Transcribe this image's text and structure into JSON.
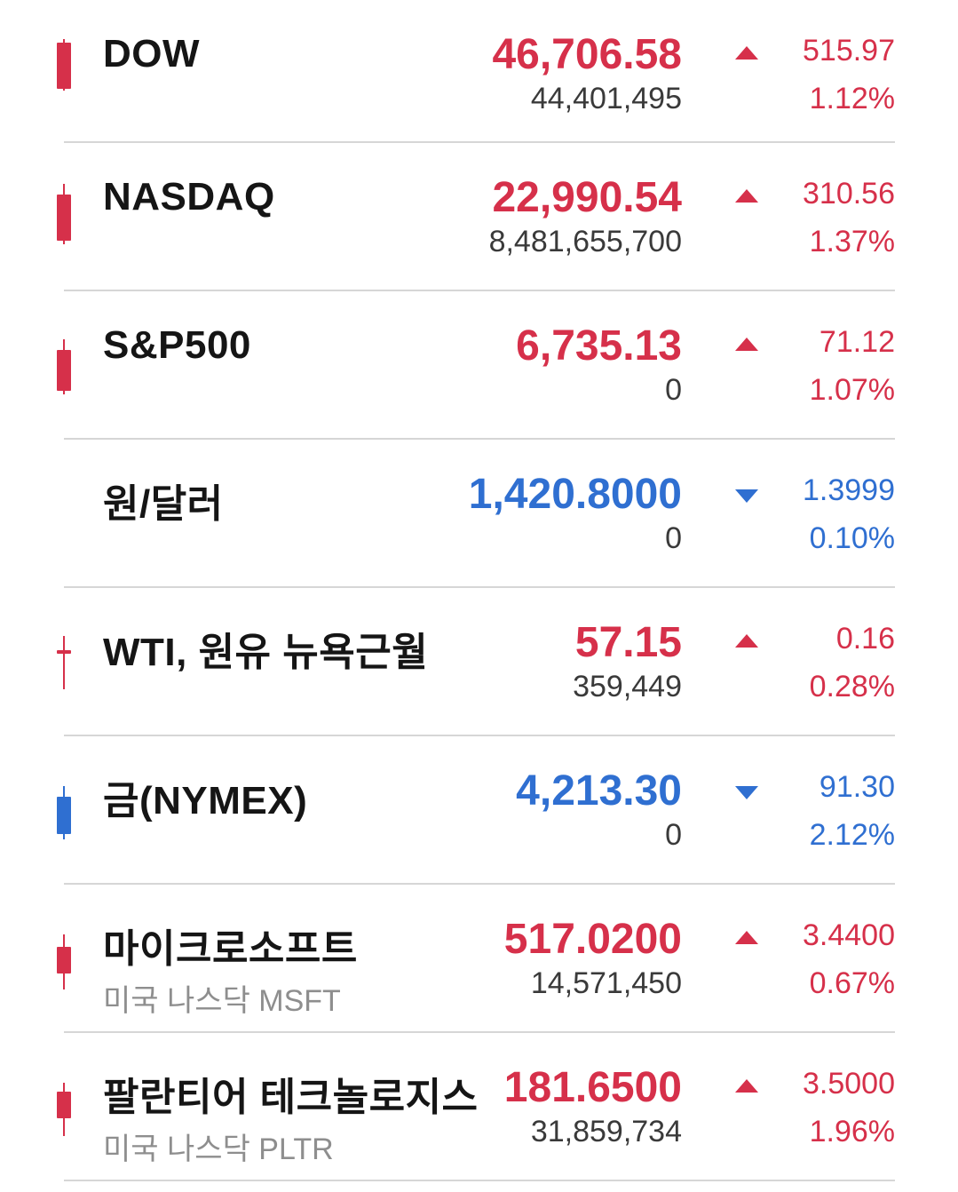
{
  "colors": {
    "up": "#d6304a",
    "down": "#2f6fd1"
  },
  "items": [
    {
      "name": "DOW",
      "sub": "",
      "price": "46,706.58",
      "volume": "44,401,495",
      "direction": "up",
      "arrow_icon": "triangle-up-icon",
      "change": "515.97",
      "pct": "1.12%",
      "candle": {
        "show": true,
        "wick_top": 50,
        "wick_bottom": 108,
        "body_top": 54,
        "body_bottom": 106
      }
    },
    {
      "name": "NASDAQ",
      "sub": "",
      "price": "22,990.54",
      "volume": "8,481,655,700",
      "direction": "up",
      "arrow_icon": "triangle-up-icon",
      "change": "310.56",
      "pct": "1.37%",
      "candle": {
        "show": true,
        "wick_top": 46,
        "wick_bottom": 114,
        "body_top": 58,
        "body_bottom": 110
      }
    },
    {
      "name": "S&P500",
      "sub": "",
      "price": "6,735.13",
      "volume": "0",
      "direction": "up",
      "arrow_icon": "triangle-up-icon",
      "change": "71.12",
      "pct": "1.07%",
      "candle": {
        "show": true,
        "wick_top": 54,
        "wick_bottom": 116,
        "body_top": 66,
        "body_bottom": 112
      }
    },
    {
      "name": "원/달러",
      "sub": "",
      "price": "1,420.8000",
      "volume": "0",
      "direction": "down",
      "arrow_icon": "triangle-down-icon",
      "change": "1.3999",
      "pct": "0.10%",
      "candle": {
        "show": false
      }
    },
    {
      "name": "WTI, 원유 뉴욕근월",
      "sub": "",
      "price": "57.15",
      "volume": "359,449",
      "direction": "up",
      "arrow_icon": "triangle-up-icon",
      "change": "0.16",
      "pct": "0.28%",
      "candle": {
        "show": true,
        "wick_top": 54,
        "wick_bottom": 114,
        "body_top": 70,
        "body_bottom": 74
      }
    },
    {
      "name": "금(NYMEX)",
      "sub": "",
      "price": "4,213.30",
      "volume": "0",
      "direction": "down",
      "arrow_icon": "triangle-down-icon",
      "change": "91.30",
      "pct": "2.12%",
      "candle": {
        "show": true,
        "wick_top": 56,
        "wick_bottom": 116,
        "body_top": 68,
        "body_bottom": 110
      }
    },
    {
      "name": "마이크로소프트",
      "sub": "미국 나스닥 MSFT",
      "price": "517.0200",
      "volume": "14,571,450",
      "direction": "up",
      "arrow_icon": "triangle-up-icon",
      "change": "3.4400",
      "pct": "0.67%",
      "candle": {
        "show": true,
        "wick_top": 56,
        "wick_bottom": 118,
        "body_top": 70,
        "body_bottom": 100
      }
    },
    {
      "name": "팔란티어 테크놀로지스",
      "sub": "미국 나스닥 PLTR",
      "price": "181.6500",
      "volume": "31,859,734",
      "direction": "up",
      "arrow_icon": "triangle-up-icon",
      "change": "3.5000",
      "pct": "1.96%",
      "candle": {
        "show": true,
        "wick_top": 56,
        "wick_bottom": 116,
        "body_top": 66,
        "body_bottom": 96
      }
    }
  ]
}
